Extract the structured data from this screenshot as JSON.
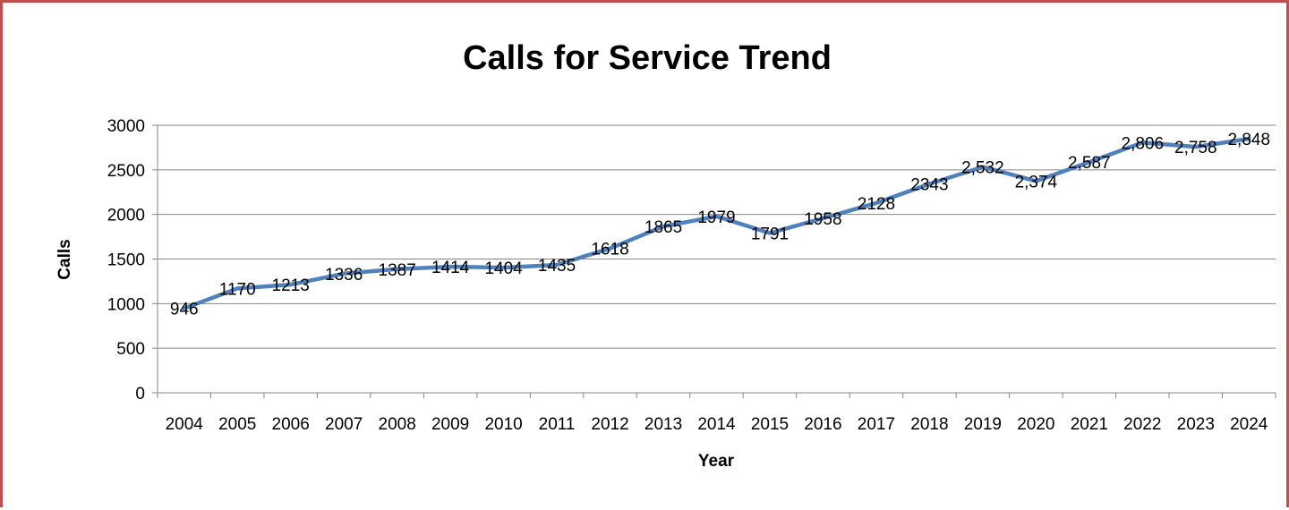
{
  "chart_data": {
    "type": "line",
    "title": "Calls for Service Trend",
    "xlabel": "Year",
    "ylabel": "Calls",
    "ylim": [
      0,
      3000
    ],
    "yticks": [
      "0",
      "500",
      "1000",
      "1500",
      "2000",
      "2500",
      "3000"
    ],
    "grid": true,
    "legend": "none",
    "line_color": "#4f81bd",
    "categories": [
      "2004",
      "2005",
      "2006",
      "2007",
      "2008",
      "2009",
      "2010",
      "2011",
      "2012",
      "2013",
      "2014",
      "2015",
      "2016",
      "2017",
      "2018",
      "2019",
      "2020",
      "2021",
      "2022",
      "2023",
      "2024"
    ],
    "values": [
      946,
      1170,
      1213,
      1336,
      1387,
      1414,
      1404,
      1435,
      1618,
      1865,
      1979,
      1791,
      1958,
      2128,
      2343,
      2532,
      2374,
      2587,
      2806,
      2758,
      2848
    ],
    "data_labels": [
      "946",
      "1170",
      "1213",
      "1336",
      "1387",
      "1414",
      "1404",
      "1435",
      "1618",
      "1865",
      "1979",
      "1791",
      "1958",
      "2128",
      "2343",
      "2,532",
      "2,374",
      "2,587",
      "2,806",
      "2,758",
      "2,848"
    ]
  }
}
